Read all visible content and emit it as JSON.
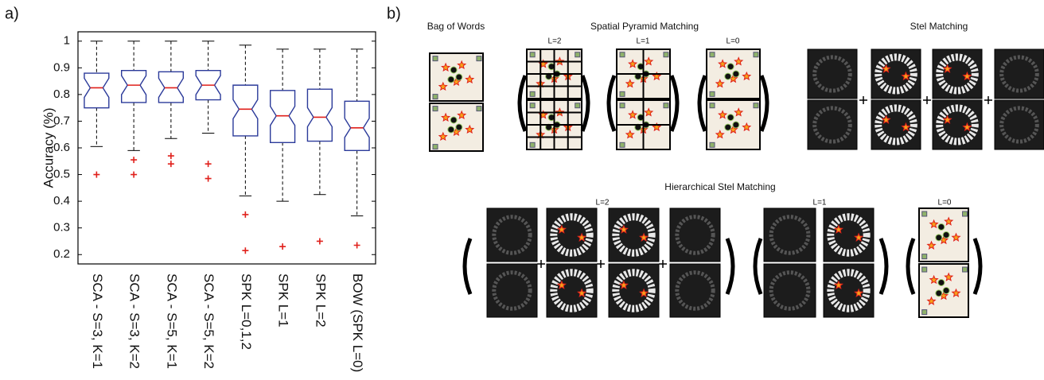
{
  "chart_data": {
    "type": "box",
    "panel_label": "a)",
    "y_label": "Accuracy (%)",
    "categories": [
      "SCA - S=3, K=1",
      "SCA - S=3, K=2",
      "SCA - S=5, K=1",
      "SCA - S=5, K=2",
      "SPK L=0,1,2",
      "SPK L=1",
      "SPK L=2",
      "BOW (SPK L=0)"
    ],
    "boxes": [
      {
        "whisker_low": 0.605,
        "q1": 0.75,
        "median": 0.825,
        "q3": 0.88,
        "whisker_high": 1.0,
        "outliers": [
          0.5
        ]
      },
      {
        "whisker_low": 0.59,
        "q1": 0.77,
        "median": 0.835,
        "q3": 0.89,
        "whisker_high": 1.0,
        "outliers": [
          0.555,
          0.5
        ]
      },
      {
        "whisker_low": 0.635,
        "q1": 0.77,
        "median": 0.825,
        "q3": 0.885,
        "whisker_high": 1.0,
        "outliers": [
          0.57,
          0.54
        ]
      },
      {
        "whisker_low": 0.655,
        "q1": 0.78,
        "median": 0.835,
        "q3": 0.89,
        "whisker_high": 1.0,
        "outliers": [
          0.54,
          0.485
        ]
      },
      {
        "whisker_low": 0.42,
        "q1": 0.645,
        "median": 0.745,
        "q3": 0.835,
        "whisker_high": 0.985,
        "outliers": [
          0.35,
          0.215
        ]
      },
      {
        "whisker_low": 0.4,
        "q1": 0.62,
        "median": 0.72,
        "q3": 0.815,
        "whisker_high": 0.97,
        "outliers": [
          0.23
        ]
      },
      {
        "whisker_low": 0.425,
        "q1": 0.625,
        "median": 0.715,
        "q3": 0.82,
        "whisker_high": 0.97,
        "outliers": [
          0.25
        ]
      },
      {
        "whisker_low": 0.345,
        "q1": 0.59,
        "median": 0.675,
        "q3": 0.775,
        "whisker_high": 0.97,
        "outliers": [
          0.235
        ]
      }
    ],
    "box_color": "#2b3a9a",
    "median_color": "#e0201b",
    "outlier_color": "#e0201b",
    "whisker_color": "#000000",
    "ylim": [
      0.165,
      1.035
    ],
    "yticks": [
      0.2,
      0.3,
      0.4,
      0.5,
      0.6,
      0.7,
      0.8,
      0.9,
      1
    ],
    "grid": false
  },
  "diagram": {
    "panel_label": "b)",
    "bag_of_words": {
      "title": "Bag of Words"
    },
    "spatial_pyramid": {
      "title": "Spatial Pyramid Matching",
      "levels": [
        "L=2",
        "L=1",
        "L=0"
      ]
    },
    "stel_matching": {
      "title": "Stel Matching"
    },
    "hierarchical": {
      "title": "Hierarchical Stel Matching",
      "levels": [
        "L=2",
        "L=1",
        "L=0"
      ]
    }
  }
}
